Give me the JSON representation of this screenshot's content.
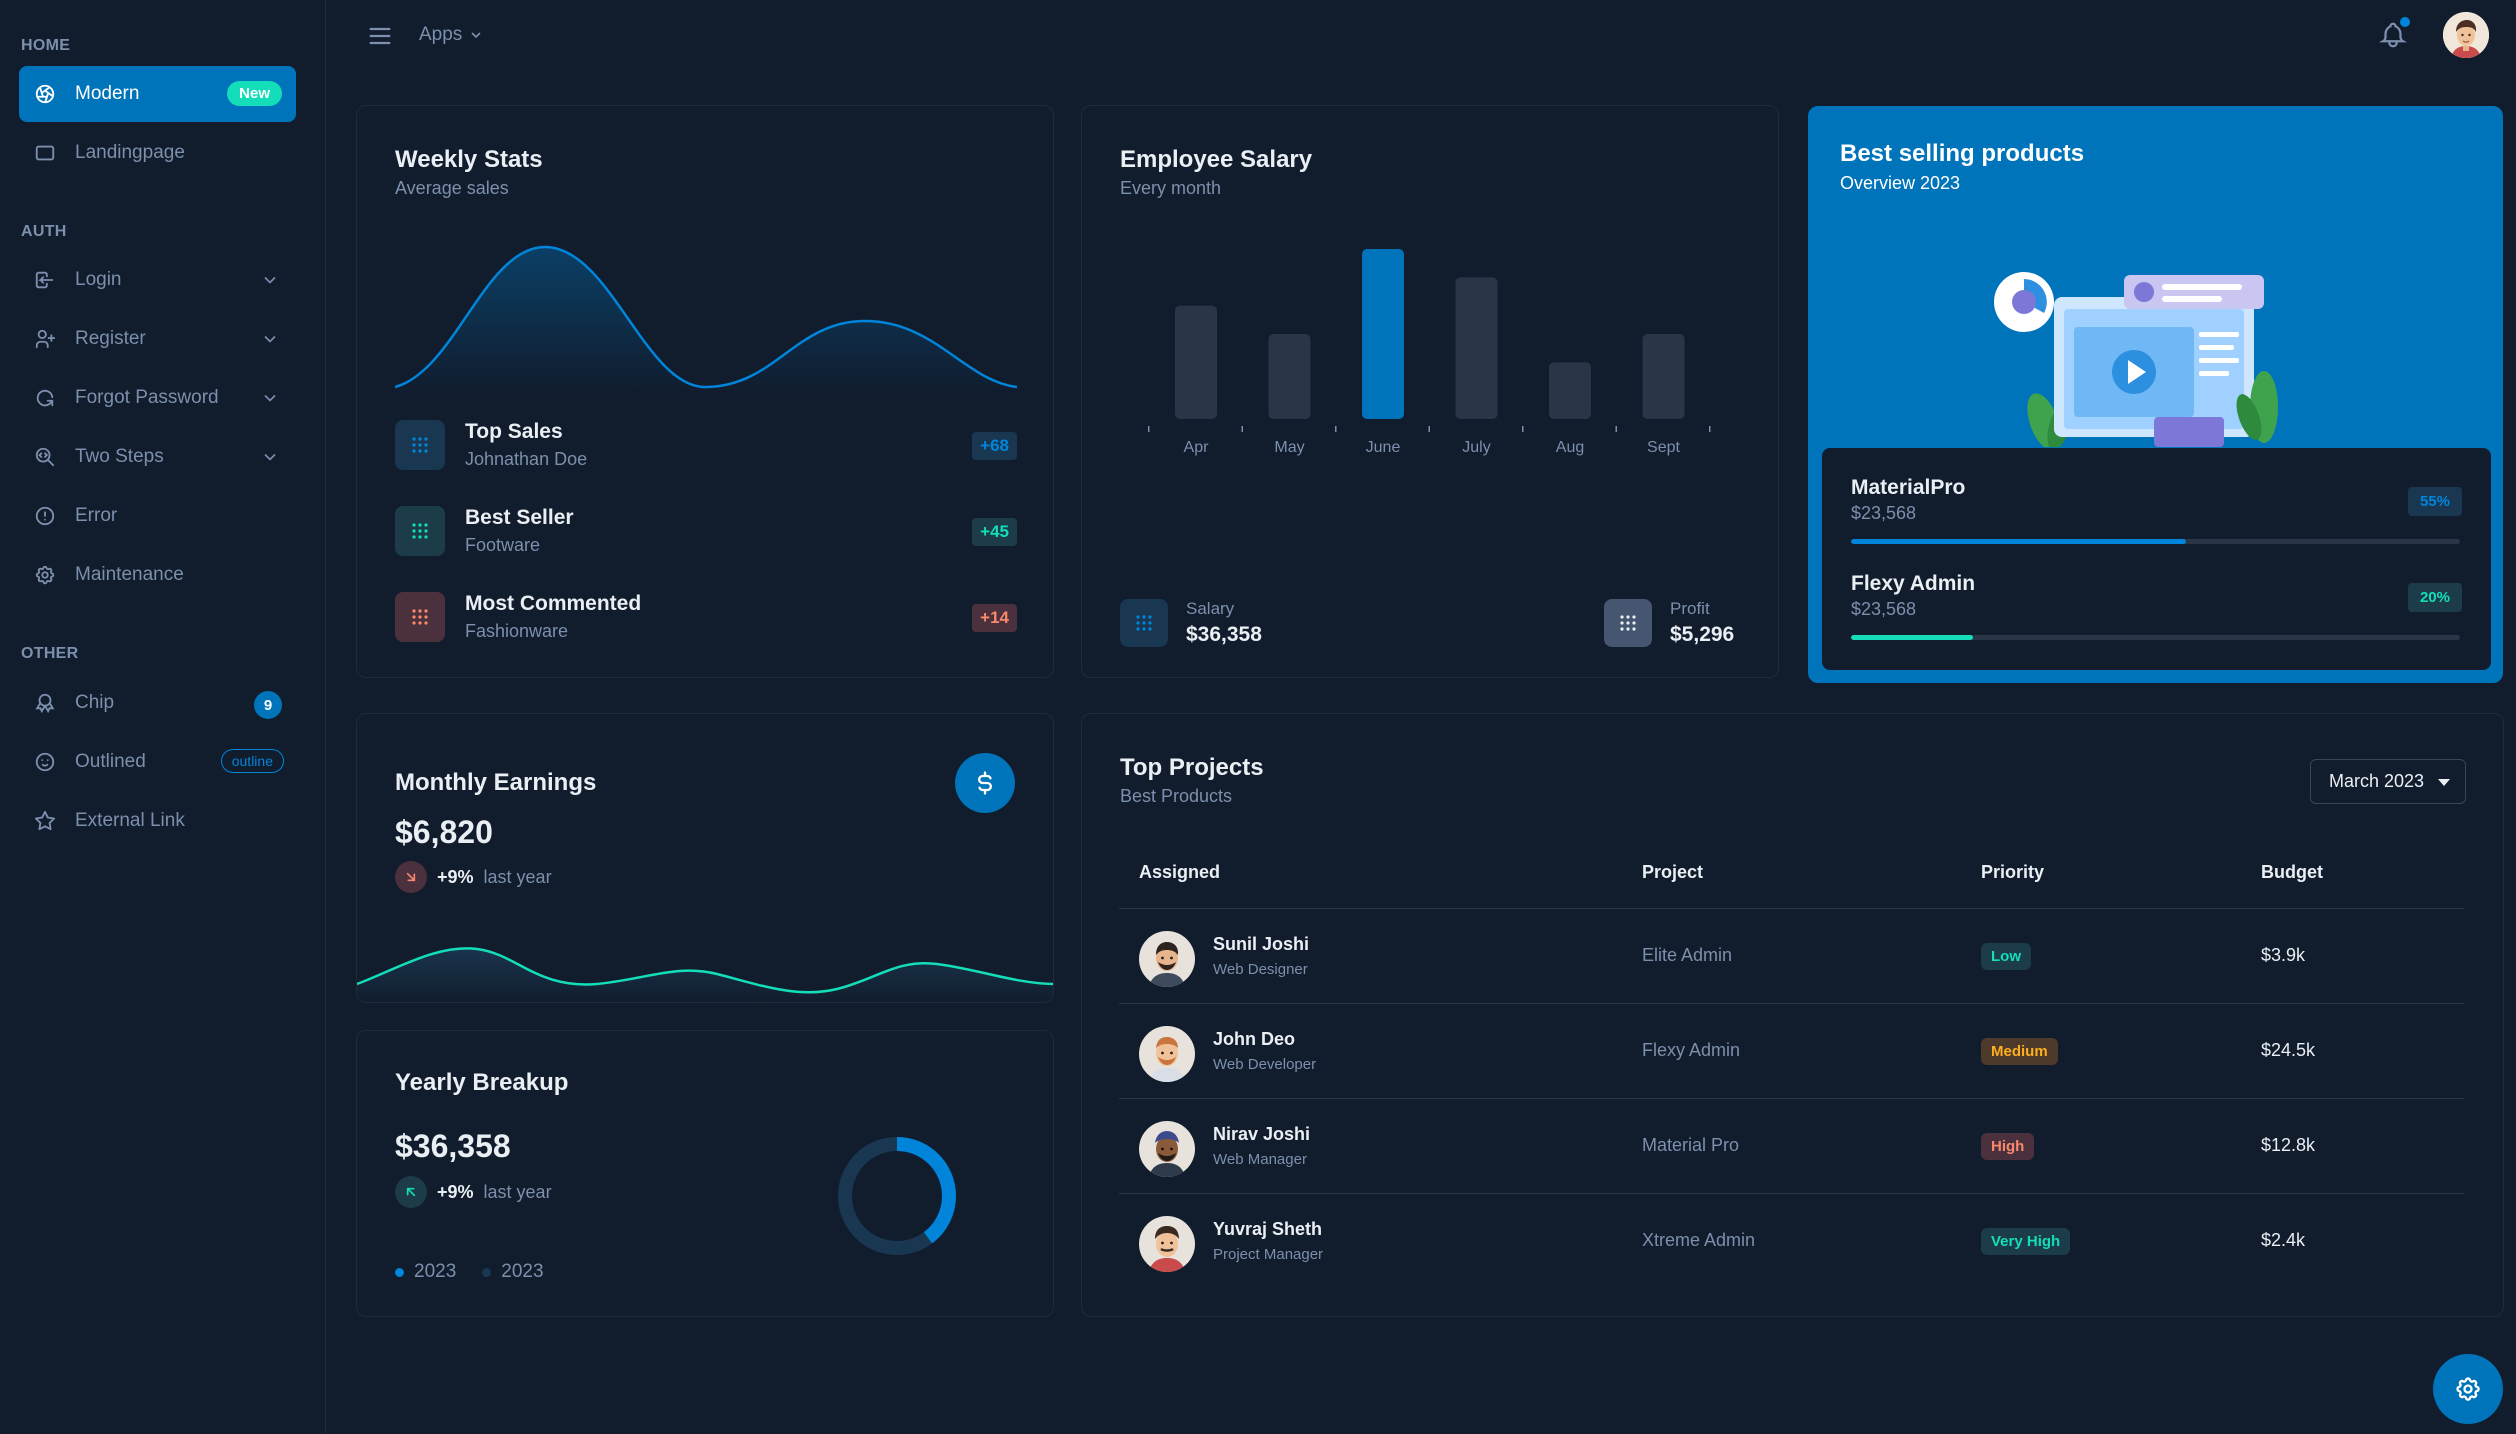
{
  "sidebar": {
    "sections": [
      "HOME",
      "AUTH",
      "OTHER"
    ],
    "items": [
      {
        "label": "Modern",
        "badge": "New",
        "icon": "aperture-icon"
      },
      {
        "label": "Landingpage",
        "icon": "layout-icon"
      },
      {
        "label": "Login",
        "icon": "login-icon"
      },
      {
        "label": "Register",
        "icon": "user-plus-icon"
      },
      {
        "label": "Forgot Password",
        "icon": "rotate-icon"
      },
      {
        "label": "Two Steps",
        "icon": "zoom-code-icon"
      },
      {
        "label": "Error",
        "icon": "alert-circle-icon"
      },
      {
        "label": "Maintenance",
        "icon": "settings-icon"
      },
      {
        "label": "Chip",
        "badge": "9",
        "icon": "award-icon"
      },
      {
        "label": "Outlined",
        "badge": "outline",
        "icon": "mood-smile-icon"
      },
      {
        "label": "External Link",
        "icon": "star-icon"
      }
    ]
  },
  "header": {
    "apps_label": "Apps"
  },
  "weekly_stats": {
    "title": "Weekly Stats",
    "subtitle": "Average sales",
    "rows": [
      {
        "name": "Top Sales",
        "desc": "Johnathan Doe",
        "value": "+68",
        "color": "#0085db"
      },
      {
        "name": "Best Seller",
        "desc": "Footware",
        "value": "+45",
        "color": "#13deb9"
      },
      {
        "name": "Most Commented",
        "desc": "Fashionware",
        "value": "+14",
        "color": "#fa896b"
      }
    ]
  },
  "employee_salary": {
    "title": "Employee Salary",
    "subtitle": "Every month",
    "salary_label": "Salary",
    "salary_value": "$36,358",
    "profit_label": "Profit",
    "profit_value": "$5,296"
  },
  "chart_data": {
    "type": "bar",
    "categories": [
      "Apr",
      "May",
      "June",
      "July",
      "Aug",
      "Sept"
    ],
    "values": [
      20,
      15,
      30,
      25,
      10,
      15
    ],
    "highlight": "June",
    "colors": {
      "default": "#2a3547",
      "highlight": "#0074ba"
    }
  },
  "best_selling": {
    "title": "Best selling products",
    "subtitle": "Overview 2023",
    "products": [
      {
        "name": "MaterialPro",
        "value": "$23,568",
        "pct": "55%",
        "fraction": 0.55,
        "color": "#0085db"
      },
      {
        "name": "Flexy Admin",
        "value": "$23,568",
        "pct": "20%",
        "fraction": 0.2,
        "color": "#13deb9"
      }
    ]
  },
  "monthly_earnings": {
    "title": "Monthly Earnings",
    "value": "$6,820",
    "trend": "+9%",
    "trend_text": "last year"
  },
  "yearly_breakup": {
    "title": "Yearly Breakup",
    "value": "$36,358",
    "trend": "+9%",
    "trend_text": "last year",
    "legend": [
      "2023",
      "2023"
    ]
  },
  "top_projects": {
    "title": "Top Projects",
    "subtitle": "Best Products",
    "filter": "March 2023",
    "columns": [
      "Assigned",
      "Project",
      "Priority",
      "Budget"
    ],
    "rows": [
      {
        "name": "Sunil Joshi",
        "role": "Web Designer",
        "project": "Elite Admin",
        "priority": "Low",
        "budget": "$3.9k"
      },
      {
        "name": "John Deo",
        "role": "Web Developer",
        "project": "Flexy Admin",
        "priority": "Medium",
        "budget": "$24.5k"
      },
      {
        "name": "Nirav Joshi",
        "role": "Web Manager",
        "project": "Material Pro",
        "priority": "High",
        "budget": "$12.8k"
      },
      {
        "name": "Yuvraj Sheth",
        "role": "Project Manager",
        "project": "Xtreme Admin",
        "priority": "Very High",
        "budget": "$2.4k"
      }
    ]
  }
}
